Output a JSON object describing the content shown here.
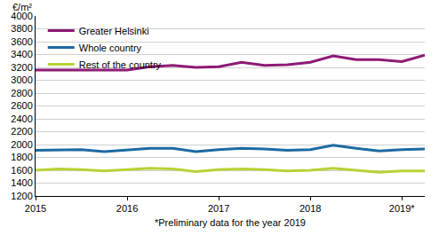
{
  "chart_data": {
    "type": "line",
    "ylabel": "€/m²",
    "note": "*Preliminary data for the year 2019",
    "categories": [
      "2015",
      null,
      null,
      null,
      "2016",
      null,
      null,
      null,
      "2017",
      null,
      null,
      null,
      "2018",
      null,
      null,
      null,
      "2019*",
      null
    ],
    "series": [
      {
        "name": "Greater Helsinki",
        "color": "#8e1a74",
        "values": [
          3160,
          3160,
          3160,
          3160,
          3160,
          3210,
          3230,
          3200,
          3210,
          3280,
          3230,
          3240,
          3280,
          3380,
          3320,
          3320,
          3290,
          3390
        ]
      },
      {
        "name": "Whole country",
        "color": "#1d6aa3",
        "values": [
          1910,
          1920,
          1920,
          1890,
          1920,
          1940,
          1940,
          1890,
          1920,
          1940,
          1930,
          1910,
          1920,
          1990,
          1940,
          1900,
          1920,
          1930
        ]
      },
      {
        "name": "Rest of the country",
        "color": "#b6d335",
        "values": [
          1600,
          1620,
          1610,
          1590,
          1610,
          1630,
          1620,
          1580,
          1610,
          1620,
          1610,
          1590,
          1600,
          1630,
          1600,
          1570,
          1590,
          1590
        ]
      }
    ],
    "ylim": [
      1200,
      4000
    ],
    "yticks": [
      1200,
      1400,
      1600,
      1800,
      2000,
      2200,
      2400,
      2600,
      2800,
      3000,
      3200,
      3400,
      3600,
      3800,
      4000
    ],
    "grid": true,
    "legend": "upper left"
  }
}
